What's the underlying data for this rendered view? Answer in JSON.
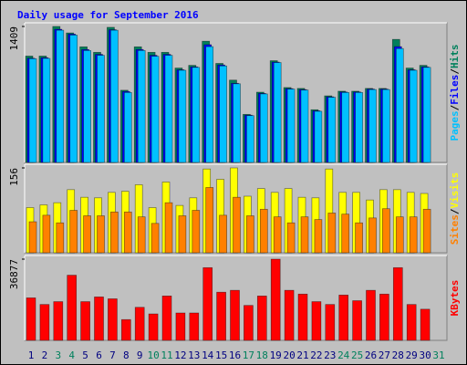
{
  "chart_data": {
    "type": "bar",
    "title": "Daily usage for September 2016",
    "categories": [
      "1",
      "2",
      "3",
      "4",
      "5",
      "6",
      "7",
      "8",
      "9",
      "10",
      "11",
      "12",
      "13",
      "14",
      "15",
      "16",
      "17",
      "18",
      "19",
      "20",
      "21",
      "22",
      "23",
      "24",
      "25",
      "26",
      "27",
      "28",
      "29",
      "30",
      "31"
    ],
    "category_colors": [
      "#000080",
      "#000080",
      "#00805c",
      "#00805c",
      "#000080",
      "#000080",
      "#000080",
      "#000080",
      "#000080",
      "#00805c",
      "#00805c",
      "#000080",
      "#000080",
      "#000080",
      "#000080",
      "#000080",
      "#00805c",
      "#00805c",
      "#000080",
      "#000080",
      "#000080",
      "#000080",
      "#000080",
      "#00805c",
      "#00805c",
      "#000080",
      "#000080",
      "#000080",
      "#000080",
      "#000080",
      "#00805c"
    ],
    "legend_separator": "/",
    "panels": [
      {
        "ylim": [
          0,
          1409
        ],
        "yticks": [
          1409
        ],
        "series": [
          {
            "name": "Hits",
            "color": "#00805c",
            "values": [
              1102,
              1102,
              1409,
              1342,
              1198,
              1141,
              1400,
              748,
              1198,
              1141,
              1141,
              978,
              1006,
              1256,
              1026,
              853,
              498,
              728,
              1054,
              776,
              767,
              546,
              690,
              738,
              738,
              767,
              767,
              1275,
              978,
              1006,
              null
            ]
          },
          {
            "name": "Files",
            "color": "#0000ff",
            "values": [
              1080,
              1085,
              1380,
              1330,
              1170,
              1120,
              1375,
              735,
              1170,
              1110,
              1120,
              960,
              990,
              1220,
              1010,
              820,
              490,
              715,
              1040,
              765,
              755,
              535,
              680,
              730,
              730,
              760,
              760,
              1200,
              960,
              990,
              null
            ]
          },
          {
            "name": "Pages",
            "color": "#00c0ff",
            "values": [
              1075,
              1078,
              1370,
              1320,
              1160,
              1110,
              1370,
              725,
              1160,
              1100,
              1110,
              955,
              985,
              1200,
              1000,
              815,
              485,
              710,
              1035,
              760,
              750,
              530,
              675,
              725,
              725,
              755,
              755,
              1180,
              955,
              985,
              null
            ]
          }
        ]
      },
      {
        "ylim": [
          0,
          156
        ],
        "yticks": [
          156
        ],
        "series": [
          {
            "name": "Visits",
            "color": "#ffff00",
            "values": [
              83,
              88,
              92,
              116,
              102,
              101,
              111,
              113,
              125,
              83,
              130,
              87,
              101,
              154,
              135,
              156,
              104,
              118,
              111,
              118,
              102,
              101,
              154,
              111,
              111,
              97,
              116,
              116,
              111,
              109,
              null
            ]
          },
          {
            "name": "Sites",
            "color": "#ff8000",
            "values": [
              57,
              69,
              55,
              78,
              68,
              68,
              75,
              75,
              66,
              54,
              92,
              68,
              78,
              120,
              69,
              102,
              68,
              80,
              66,
              55,
              66,
              61,
              73,
              71,
              55,
              64,
              81,
              66,
              66,
              80,
              null
            ]
          }
        ]
      },
      {
        "ylim": [
          0,
          36877
        ],
        "yticks": [
          36877
        ],
        "series": [
          {
            "name": "KBytes",
            "color": "#ff0000",
            "values": [
              19296,
              16295,
              17581,
              29587,
              17581,
              19725,
              18867,
              9434,
              15008,
              12006,
              20153,
              12435,
              12435,
              33017,
              21869,
              22727,
              15866,
              20153,
              36877,
              22727,
              21011,
              17581,
              16295,
              20582,
              18010,
              22727,
              21011,
              33017,
              16295,
              14151,
              null
            ]
          }
        ]
      }
    ]
  }
}
